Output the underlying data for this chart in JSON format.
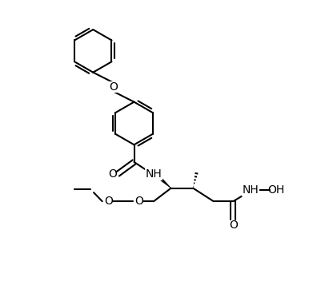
{
  "background_color": "#ffffff",
  "line_color": "#000000",
  "line_width": 1.5,
  "font_size": 9.5,
  "fig_width": 4.02,
  "fig_height": 3.72,
  "dpi": 100,
  "xlim": [
    0,
    10
  ],
  "ylim": [
    0,
    9.3
  ]
}
